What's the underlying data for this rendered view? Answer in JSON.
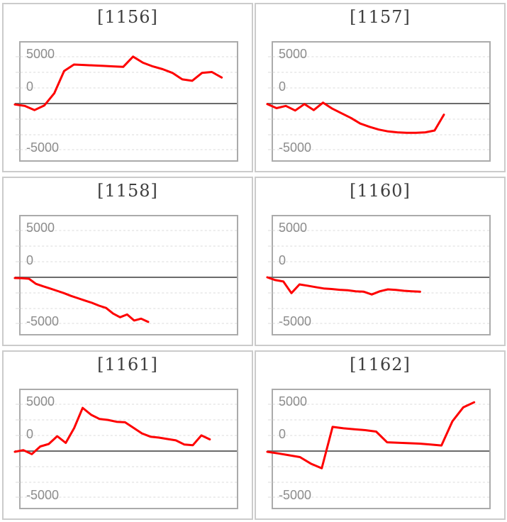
{
  "page": {
    "background": "#FFFFFF"
  },
  "colors": {
    "series_line": "#FE0000",
    "zero_axis_line": "#6B6B6B",
    "gridline": "#DBDBDB",
    "plot_border": "#ABABAB",
    "cell_border": "#CBCBCB",
    "title_text": "#3F3F3F",
    "axis_label_text": "#8C8C8C"
  },
  "axis": {
    "y_tick_labels": [
      "5000",
      "0",
      "-5000"
    ],
    "y_tick_values": [
      5000,
      0,
      -5000
    ],
    "y_min": -5000,
    "y_max": 5000
  },
  "chart_data": [
    {
      "type": "line",
      "title": "[1156]",
      "xlabel": "",
      "ylabel": "",
      "y_ticks": [
        5000,
        0,
        -5000
      ],
      "ylim": [
        -6500,
        6500
      ],
      "grid": "dashed-horizontal",
      "legend": "none",
      "x_extent": 0.93,
      "values": [
        -100,
        -250,
        -700,
        -200,
        1100,
        3500,
        4200,
        4150,
        4100,
        4050,
        4000,
        3950,
        5050,
        4400,
        4000,
        3700,
        3300,
        2600,
        2450,
        3300,
        3400,
        2800
      ]
    },
    {
      "type": "line",
      "title": "[1157]",
      "xlabel": "",
      "ylabel": "",
      "y_ticks": [
        5000,
        0,
        -5000
      ],
      "ylim": [
        -6500,
        6500
      ],
      "grid": "dashed-horizontal",
      "legend": "none",
      "x_extent": 0.79,
      "values": [
        -50,
        -500,
        -250,
        -750,
        -50,
        -700,
        100,
        -550,
        -1050,
        -1550,
        -2150,
        -2500,
        -2800,
        -3000,
        -3100,
        -3150,
        -3150,
        -3100,
        -2900,
        -1200
      ]
    },
    {
      "type": "line",
      "title": "[1158]",
      "xlabel": "",
      "ylabel": "",
      "y_ticks": [
        5000,
        0,
        -5000
      ],
      "ylim": [
        -6500,
        6500
      ],
      "grid": "dashed-horizontal",
      "legend": "none",
      "x_extent": 0.59,
      "values": [
        -80,
        -100,
        -150,
        -700,
        -960,
        -1200,
        -1450,
        -1700,
        -2000,
        -2250,
        -2500,
        -2750,
        -3050,
        -3300,
        -3900,
        -4300,
        -4000,
        -4650,
        -4450,
        -4800
      ]
    },
    {
      "type": "line",
      "title": "[1160]",
      "xlabel": "",
      "ylabel": "",
      "y_ticks": [
        5000,
        0,
        -5000
      ],
      "ylim": [
        -6500,
        6500
      ],
      "grid": "dashed-horizontal",
      "legend": "none",
      "x_extent": 0.68,
      "values": [
        0,
        -300,
        -450,
        -1700,
        -760,
        -900,
        -1050,
        -1200,
        -1260,
        -1340,
        -1400,
        -1500,
        -1550,
        -1850,
        -1500,
        -1300,
        -1350,
        -1450,
        -1500,
        -1550
      ]
    },
    {
      "type": "line",
      "title": "[1161]",
      "xlabel": "",
      "ylabel": "",
      "y_ticks": [
        5000,
        0,
        -5000
      ],
      "ylim": [
        -6500,
        6500
      ],
      "grid": "dashed-horizontal",
      "legend": "none",
      "x_extent": 0.875,
      "values": [
        -80,
        100,
        -330,
        500,
        760,
        1600,
        880,
        2480,
        4650,
        3900,
        3450,
        3350,
        3150,
        3100,
        2500,
        1900,
        1550,
        1450,
        1300,
        1150,
        700,
        630,
        1690,
        1260
      ]
    },
    {
      "type": "line",
      "title": "[1162]",
      "xlabel": "",
      "ylabel": "",
      "y_ticks": [
        5000,
        0,
        -5000
      ],
      "ylim": [
        -6500,
        6500
      ],
      "grid": "dashed-horizontal",
      "legend": "none",
      "x_extent": 0.93,
      "values": [
        -80,
        -250,
        -450,
        -650,
        -1350,
        -1850,
        2600,
        2450,
        2350,
        2250,
        2100,
        950,
        900,
        850,
        800,
        700,
        600,
        3200,
        4700,
        5250
      ]
    }
  ]
}
